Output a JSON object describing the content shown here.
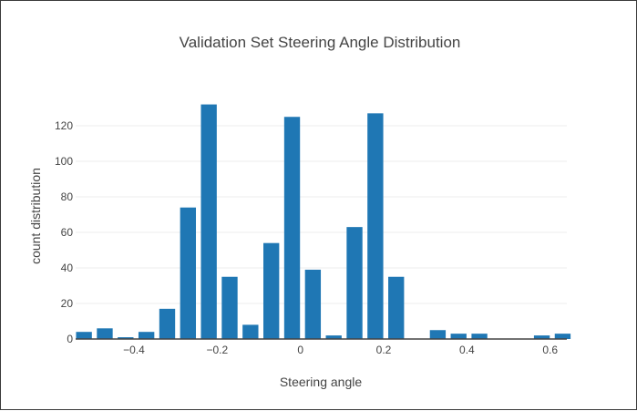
{
  "chart_data": {
    "type": "bar",
    "title": "Validation Set Steering Angle Distribution",
    "xlabel": "Steering angle",
    "ylabel": "count distribution",
    "bar_color": "#1f77b4",
    "xlim": [
      -0.54,
      0.64
    ],
    "ylim": [
      0,
      140
    ],
    "xticks": [
      -0.4,
      -0.2,
      0,
      0.2,
      0.4,
      0.6
    ],
    "xtick_labels": [
      "−0.4",
      "−0.2",
      "0",
      "0.2",
      "0.4",
      "0.6"
    ],
    "yticks": [
      0,
      20,
      40,
      60,
      80,
      100,
      120
    ],
    "ytick_labels": [
      "0",
      "20",
      "40",
      "60",
      "80",
      "100",
      "120"
    ],
    "grid": true,
    "bin_width": 0.05,
    "x": [
      -0.52,
      -0.47,
      -0.42,
      -0.37,
      -0.32,
      -0.27,
      -0.22,
      -0.17,
      -0.12,
      -0.07,
      -0.02,
      0.03,
      0.08,
      0.13,
      0.18,
      0.23,
      0.28,
      0.33,
      0.38,
      0.43,
      0.48,
      0.53,
      0.58,
      0.63
    ],
    "values": [
      4,
      6,
      1,
      4,
      17,
      74,
      132,
      35,
      8,
      54,
      125,
      39,
      2,
      63,
      127,
      35,
      0,
      5,
      3,
      3,
      0,
      0,
      2,
      3
    ]
  }
}
